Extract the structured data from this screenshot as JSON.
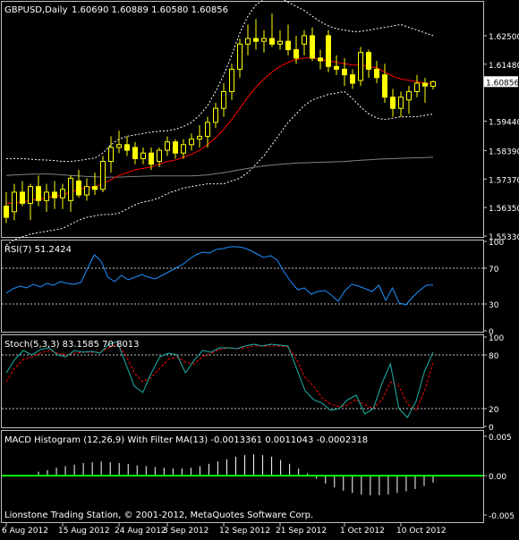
{
  "header": {
    "symbol": "GBPUSD,Daily",
    "ohlc": "1.60690 1.60889 1.60580 1.60856"
  },
  "footer": {
    "copyright": "Lionstone Trading Station, © 2001-2012, MetaQuotes Software Corp."
  },
  "colors": {
    "background": "#000000",
    "axis": "#c0c0c0",
    "text": "#ffffff",
    "candle": "#ffff00",
    "ma_short": "#ff0000",
    "ma_long": "#808080",
    "bollinger": "#ffffff",
    "rsi": "#1e90ff",
    "stoch_main": "#20b2aa",
    "stoch_signal": "#ff0000",
    "macd_hist": "#ffffff",
    "macd_zero": "#00ff00",
    "price_tag_bg": "#ffffff",
    "price_tag_text": "#000000"
  },
  "chart_data": [
    {
      "type": "candlestick",
      "name": "GBPUSD,Daily",
      "ylim": [
        1.5533,
        1.6365
      ],
      "y_ticks": [
        "1.62500",
        "1.61480",
        "1.60856",
        "1.59440",
        "1.58390",
        "1.57370",
        "1.56350",
        "1.55330"
      ],
      "x_ticks": [
        {
          "label": "6 Aug 2012",
          "index": 0
        },
        {
          "label": "15 Aug 2012",
          "index": 7
        },
        {
          "label": "24 Aug 2012",
          "index": 14
        },
        {
          "label": "3 Sep 2012",
          "index": 20
        },
        {
          "label": "12 Sep 2012",
          "index": 27
        },
        {
          "label": "21 Sep 2012",
          "index": 34
        },
        {
          "label": "1 Oct 2012",
          "index": 42
        },
        {
          "label": "10 Oct 2012",
          "index": 49
        }
      ],
      "last_price": "1.60856",
      "candles": [
        {
          "o": 1.564,
          "h": 1.569,
          "l": 1.558,
          "c": 1.56
        },
        {
          "o": 1.562,
          "h": 1.572,
          "l": 1.559,
          "c": 1.569
        },
        {
          "o": 1.569,
          "h": 1.573,
          "l": 1.564,
          "c": 1.565
        },
        {
          "o": 1.565,
          "h": 1.572,
          "l": 1.559,
          "c": 1.571
        },
        {
          "o": 1.571,
          "h": 1.575,
          "l": 1.564,
          "c": 1.566
        },
        {
          "o": 1.566,
          "h": 1.572,
          "l": 1.562,
          "c": 1.569
        },
        {
          "o": 1.569,
          "h": 1.573,
          "l": 1.563,
          "c": 1.567
        },
        {
          "o": 1.567,
          "h": 1.572,
          "l": 1.563,
          "c": 1.57
        },
        {
          "o": 1.566,
          "h": 1.575,
          "l": 1.562,
          "c": 1.574
        },
        {
          "o": 1.573,
          "h": 1.577,
          "l": 1.567,
          "c": 1.568
        },
        {
          "o": 1.568,
          "h": 1.574,
          "l": 1.566,
          "c": 1.571
        },
        {
          "o": 1.571,
          "h": 1.576,
          "l": 1.568,
          "c": 1.57
        },
        {
          "o": 1.57,
          "h": 1.582,
          "l": 1.569,
          "c": 1.58
        },
        {
          "o": 1.58,
          "h": 1.589,
          "l": 1.576,
          "c": 1.585
        },
        {
          "o": 1.585,
          "h": 1.591,
          "l": 1.583,
          "c": 1.586
        },
        {
          "o": 1.586,
          "h": 1.589,
          "l": 1.582,
          "c": 1.584
        },
        {
          "o": 1.585,
          "h": 1.587,
          "l": 1.579,
          "c": 1.581
        },
        {
          "o": 1.581,
          "h": 1.585,
          "l": 1.579,
          "c": 1.583
        },
        {
          "o": 1.583,
          "h": 1.585,
          "l": 1.577,
          "c": 1.579
        },
        {
          "o": 1.58,
          "h": 1.585,
          "l": 1.578,
          "c": 1.584
        },
        {
          "o": 1.584,
          "h": 1.589,
          "l": 1.582,
          "c": 1.587
        },
        {
          "o": 1.587,
          "h": 1.588,
          "l": 1.581,
          "c": 1.583
        },
        {
          "o": 1.583,
          "h": 1.588,
          "l": 1.581,
          "c": 1.586
        },
        {
          "o": 1.586,
          "h": 1.59,
          "l": 1.584,
          "c": 1.588
        },
        {
          "o": 1.588,
          "h": 1.593,
          "l": 1.585,
          "c": 1.589
        },
        {
          "o": 1.589,
          "h": 1.596,
          "l": 1.585,
          "c": 1.594
        },
        {
          "o": 1.594,
          "h": 1.601,
          "l": 1.592,
          "c": 1.599
        },
        {
          "o": 1.599,
          "h": 1.608,
          "l": 1.596,
          "c": 1.605
        },
        {
          "o": 1.605,
          "h": 1.615,
          "l": 1.602,
          "c": 1.613
        },
        {
          "o": 1.613,
          "h": 1.624,
          "l": 1.61,
          "c": 1.622
        },
        {
          "o": 1.622,
          "h": 1.629,
          "l": 1.618,
          "c": 1.624
        },
        {
          "o": 1.624,
          "h": 1.631,
          "l": 1.62,
          "c": 1.623
        },
        {
          "o": 1.623,
          "h": 1.627,
          "l": 1.619,
          "c": 1.624
        },
        {
          "o": 1.624,
          "h": 1.633,
          "l": 1.621,
          "c": 1.622
        },
        {
          "o": 1.622,
          "h": 1.627,
          "l": 1.62,
          "c": 1.623
        },
        {
          "o": 1.623,
          "h": 1.629,
          "l": 1.618,
          "c": 1.62
        },
        {
          "o": 1.62,
          "h": 1.625,
          "l": 1.615,
          "c": 1.617
        },
        {
          "o": 1.622,
          "h": 1.627,
          "l": 1.618,
          "c": 1.625
        },
        {
          "o": 1.625,
          "h": 1.628,
          "l": 1.616,
          "c": 1.617
        },
        {
          "o": 1.617,
          "h": 1.62,
          "l": 1.613,
          "c": 1.616
        },
        {
          "o": 1.625,
          "h": 1.627,
          "l": 1.612,
          "c": 1.614
        },
        {
          "o": 1.614,
          "h": 1.618,
          "l": 1.611,
          "c": 1.613
        },
        {
          "o": 1.613,
          "h": 1.617,
          "l": 1.607,
          "c": 1.611
        },
        {
          "o": 1.611,
          "h": 1.613,
          "l": 1.606,
          "c": 1.608
        },
        {
          "o": 1.609,
          "h": 1.621,
          "l": 1.607,
          "c": 1.619
        },
        {
          "o": 1.619,
          "h": 1.62,
          "l": 1.61,
          "c": 1.613
        },
        {
          "o": 1.613,
          "h": 1.616,
          "l": 1.608,
          "c": 1.61
        },
        {
          "o": 1.611,
          "h": 1.615,
          "l": 1.601,
          "c": 1.603
        },
        {
          "o": 1.603,
          "h": 1.606,
          "l": 1.596,
          "c": 1.599
        },
        {
          "o": 1.599,
          "h": 1.605,
          "l": 1.596,
          "c": 1.603
        },
        {
          "o": 1.602,
          "h": 1.607,
          "l": 1.597,
          "c": 1.605
        },
        {
          "o": 1.605,
          "h": 1.611,
          "l": 1.603,
          "c": 1.608
        },
        {
          "o": 1.608,
          "h": 1.61,
          "l": 1.601,
          "c": 1.607
        },
        {
          "o": 1.6069,
          "h": 1.6089,
          "l": 1.6058,
          "c": 1.60856
        }
      ],
      "ma_short": [
        1.565,
        1.565,
        1.5655,
        1.566,
        1.5665,
        1.567,
        1.5675,
        1.568,
        1.569,
        1.57,
        1.5705,
        1.571,
        1.572,
        1.5735,
        1.575,
        1.576,
        1.577,
        1.5775,
        1.578,
        1.579,
        1.58,
        1.5805,
        1.5815,
        1.5825,
        1.584,
        1.586,
        1.5885,
        1.5915,
        1.595,
        1.599,
        1.603,
        1.6065,
        1.6095,
        1.612,
        1.614,
        1.6155,
        1.6165,
        1.617,
        1.617,
        1.6165,
        1.616,
        1.6155,
        1.615,
        1.6145,
        1.6145,
        1.614,
        1.6135,
        1.612,
        1.6105,
        1.6095,
        1.609,
        1.6085,
        1.608,
        1.608
      ],
      "ma_long": [
        1.575,
        1.5752,
        1.5753,
        1.5754,
        1.5755,
        1.5755,
        1.5754,
        1.5752,
        1.575,
        1.5748,
        1.5746,
        1.5745,
        1.5744,
        1.5744,
        1.5744,
        1.5745,
        1.5746,
        1.5747,
        1.5748,
        1.5748,
        1.5748,
        1.5748,
        1.5748,
        1.5748,
        1.575,
        1.5752,
        1.5756,
        1.576,
        1.5765,
        1.577,
        1.5775,
        1.578,
        1.5784,
        1.5787,
        1.579,
        1.5792,
        1.5794,
        1.5795,
        1.5796,
        1.5797,
        1.5798,
        1.5799,
        1.58,
        1.5802,
        1.5804,
        1.5806,
        1.5808,
        1.5809,
        1.581,
        1.5811,
        1.5812,
        1.5813,
        1.5814,
        1.5815
      ],
      "bb_upper": [
        1.581,
        1.581,
        1.581,
        1.5808,
        1.5806,
        1.5805,
        1.5803,
        1.58,
        1.58,
        1.5803,
        1.5808,
        1.5812,
        1.583,
        1.586,
        1.588,
        1.589,
        1.5895,
        1.59,
        1.5905,
        1.5908,
        1.591,
        1.5915,
        1.5925,
        1.594,
        1.5965,
        1.6,
        1.605,
        1.611,
        1.618,
        1.626,
        1.632,
        1.636,
        1.638,
        1.639,
        1.6385,
        1.637,
        1.6355,
        1.634,
        1.632,
        1.63,
        1.6285,
        1.6275,
        1.627,
        1.6265,
        1.6265,
        1.627,
        1.6275,
        1.628,
        1.6285,
        1.629,
        1.628,
        1.627,
        1.626,
        1.625
      ],
      "bb_lower": [
        1.55,
        1.552,
        1.553,
        1.554,
        1.5545,
        1.555,
        1.5555,
        1.556,
        1.5575,
        1.559,
        1.56,
        1.5605,
        1.561,
        1.561,
        1.5615,
        1.563,
        1.5645,
        1.5655,
        1.566,
        1.567,
        1.5685,
        1.5695,
        1.5705,
        1.571,
        1.5715,
        1.572,
        1.572,
        1.572,
        1.573,
        1.574,
        1.576,
        1.579,
        1.582,
        1.586,
        1.59,
        1.594,
        1.597,
        1.6,
        1.602,
        1.603,
        1.604,
        1.6045,
        1.605,
        1.6025,
        1.5995,
        1.597,
        1.5955,
        1.595,
        1.5955,
        1.596,
        1.596,
        1.596,
        1.5965,
        1.597
      ]
    },
    {
      "type": "line",
      "name": "RSI(7) 51.2424",
      "ylim": [
        0,
        100
      ],
      "levels": [
        30,
        70
      ],
      "y_ticks": [
        "100",
        "70",
        "30",
        "0"
      ],
      "values": [
        42,
        47,
        50,
        48,
        52,
        49,
        53,
        51,
        55,
        53,
        52,
        54,
        70,
        85,
        78,
        60,
        55,
        62,
        57,
        60,
        63,
        60,
        58,
        62,
        66,
        70,
        74,
        80,
        85,
        88,
        87,
        91,
        92,
        94,
        94,
        93,
        90,
        86,
        82,
        84,
        79,
        66,
        55,
        46,
        48,
        41,
        44,
        45,
        40,
        33,
        45,
        52,
        50,
        47,
        44,
        51,
        34,
        48,
        31,
        29,
        38,
        45,
        51,
        51.2424
      ]
    },
    {
      "type": "line",
      "name": "Stoch(5,3,3) 83.1585 70.8013",
      "ylim": [
        0,
        100
      ],
      "levels": [
        20,
        80
      ],
      "y_ticks": [
        "100",
        "80",
        "20",
        "0"
      ],
      "series": [
        {
          "name": "main",
          "values": [
            60,
            75,
            85,
            80,
            86,
            88,
            80,
            78,
            85,
            83,
            84,
            82,
            92,
            95,
            70,
            45,
            38,
            60,
            78,
            82,
            80,
            60,
            74,
            85,
            83,
            88,
            88,
            87,
            90,
            92,
            90,
            92,
            91,
            90,
            65,
            40,
            30,
            26,
            18,
            20,
            30,
            35,
            14,
            20,
            48,
            70,
            20,
            10,
            28,
            62,
            83.1585
          ]
        },
        {
          "name": "signal",
          "values": [
            50,
            65,
            75,
            78,
            82,
            85,
            82,
            80,
            82,
            83,
            83,
            83,
            88,
            92,
            80,
            60,
            50,
            55,
            65,
            75,
            78,
            72,
            70,
            78,
            82,
            86,
            88,
            87,
            88,
            90,
            90,
            90,
            90,
            89,
            75,
            55,
            45,
            32,
            25,
            22,
            24,
            30,
            24,
            20,
            30,
            50,
            45,
            25,
            18,
            40,
            70.8013
          ]
        }
      ]
    },
    {
      "type": "bar",
      "name": "MACD Histogram (12,26,9) With Filter MA(13) -0.0013361 0.0011043 -0.0002318",
      "ylim": [
        -0.005,
        0.005
      ],
      "y_ticks": [
        "0.005",
        "0.00",
        "-0.005"
      ],
      "values": [
        0.0005,
        0.0007,
        0.001,
        0.0012,
        0.0014,
        0.0016,
        0.0017,
        0.0018,
        0.0017,
        0.0016,
        0.0015,
        0.0013,
        0.0012,
        0.0011,
        0.001,
        0.0009,
        0.0009,
        0.001,
        0.0012,
        0.0015,
        0.0018,
        0.0021,
        0.0024,
        0.0026,
        0.0027,
        0.0026,
        0.0024,
        0.002,
        0.0015,
        0.0009,
        0.0003,
        -0.0004,
        -0.001,
        -0.0015,
        -0.0019,
        -0.0022,
        -0.0024,
        -0.0025,
        -0.0025,
        -0.0024,
        -0.0022,
        -0.002,
        -0.0017,
        -0.0013,
        -0.0009
      ]
    }
  ]
}
